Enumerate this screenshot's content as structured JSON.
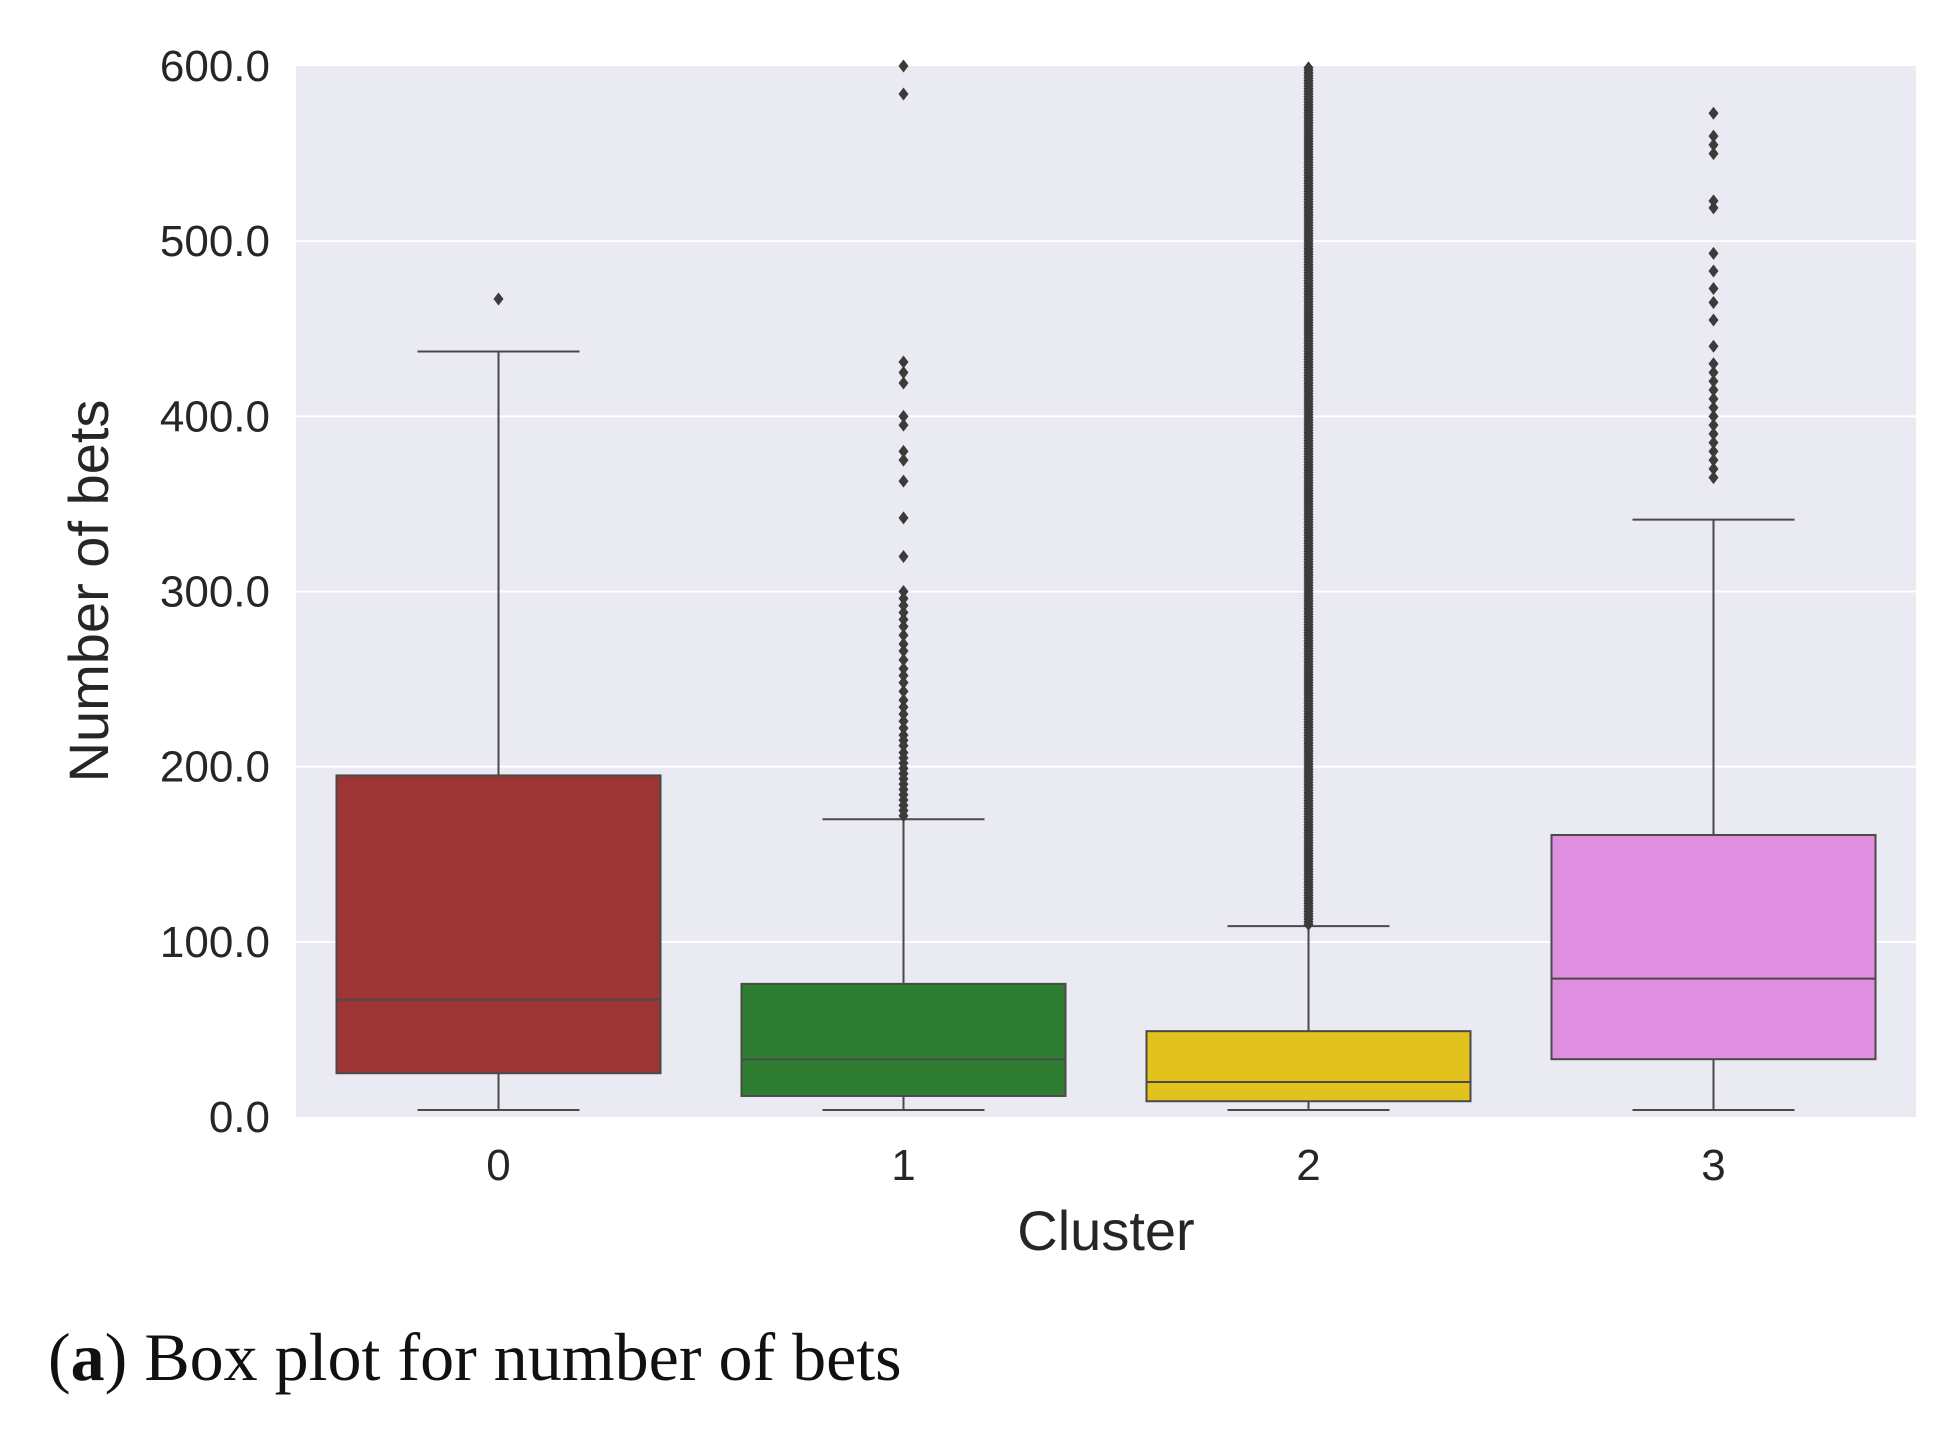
{
  "caption": {
    "letter": "a",
    "text": "Box plot for number of bets"
  },
  "chart_data": {
    "type": "box",
    "xlabel": "Cluster",
    "ylabel": "Number of bets",
    "ylim": [
      0,
      600
    ],
    "yticks": [
      "0.0",
      "100.0",
      "200.0",
      "300.0",
      "400.0",
      "500.0",
      "600.0"
    ],
    "categories": [
      "0",
      "1",
      "2",
      "3"
    ],
    "grid": true,
    "background_color": "#eaeaf2",
    "boxes": [
      {
        "category": "0",
        "color": "#9e3535",
        "whisker_low": 4,
        "q1": 25,
        "median": 67,
        "q3": 195,
        "whisker_high": 437,
        "outliers": [
          467
        ]
      },
      {
        "category": "1",
        "color": "#2f7d32",
        "whisker_low": 4,
        "q1": 12,
        "median": 33,
        "q3": 76,
        "whisker_high": 170,
        "outliers": [
          172,
          175,
          178,
          181,
          184,
          187,
          190,
          193,
          196,
          199,
          202,
          205,
          208,
          212,
          215,
          218,
          222,
          226,
          230,
          234,
          238,
          243,
          248,
          252,
          256,
          261,
          266,
          270,
          275,
          280,
          284,
          288,
          292,
          296,
          300,
          320,
          342,
          363,
          375,
          380,
          395,
          400,
          419,
          425,
          431,
          584,
          600
        ]
      },
      {
        "category": "2",
        "color": "#e2c21d",
        "whisker_low": 4,
        "q1": 9,
        "median": 20,
        "q3": 49,
        "whisker_high": 109,
        "outliers_range": [
          110,
          600
        ],
        "outliers_dense": true
      },
      {
        "category": "3",
        "color": "#e08ee0",
        "whisker_low": 4,
        "q1": 33,
        "median": 79,
        "q3": 161,
        "whisker_high": 341,
        "outliers": [
          365,
          370,
          375,
          380,
          385,
          390,
          395,
          400,
          405,
          410,
          415,
          420,
          425,
          430,
          440,
          455,
          465,
          473,
          483,
          493,
          519,
          523,
          550,
          555,
          560,
          573
        ]
      }
    ]
  }
}
